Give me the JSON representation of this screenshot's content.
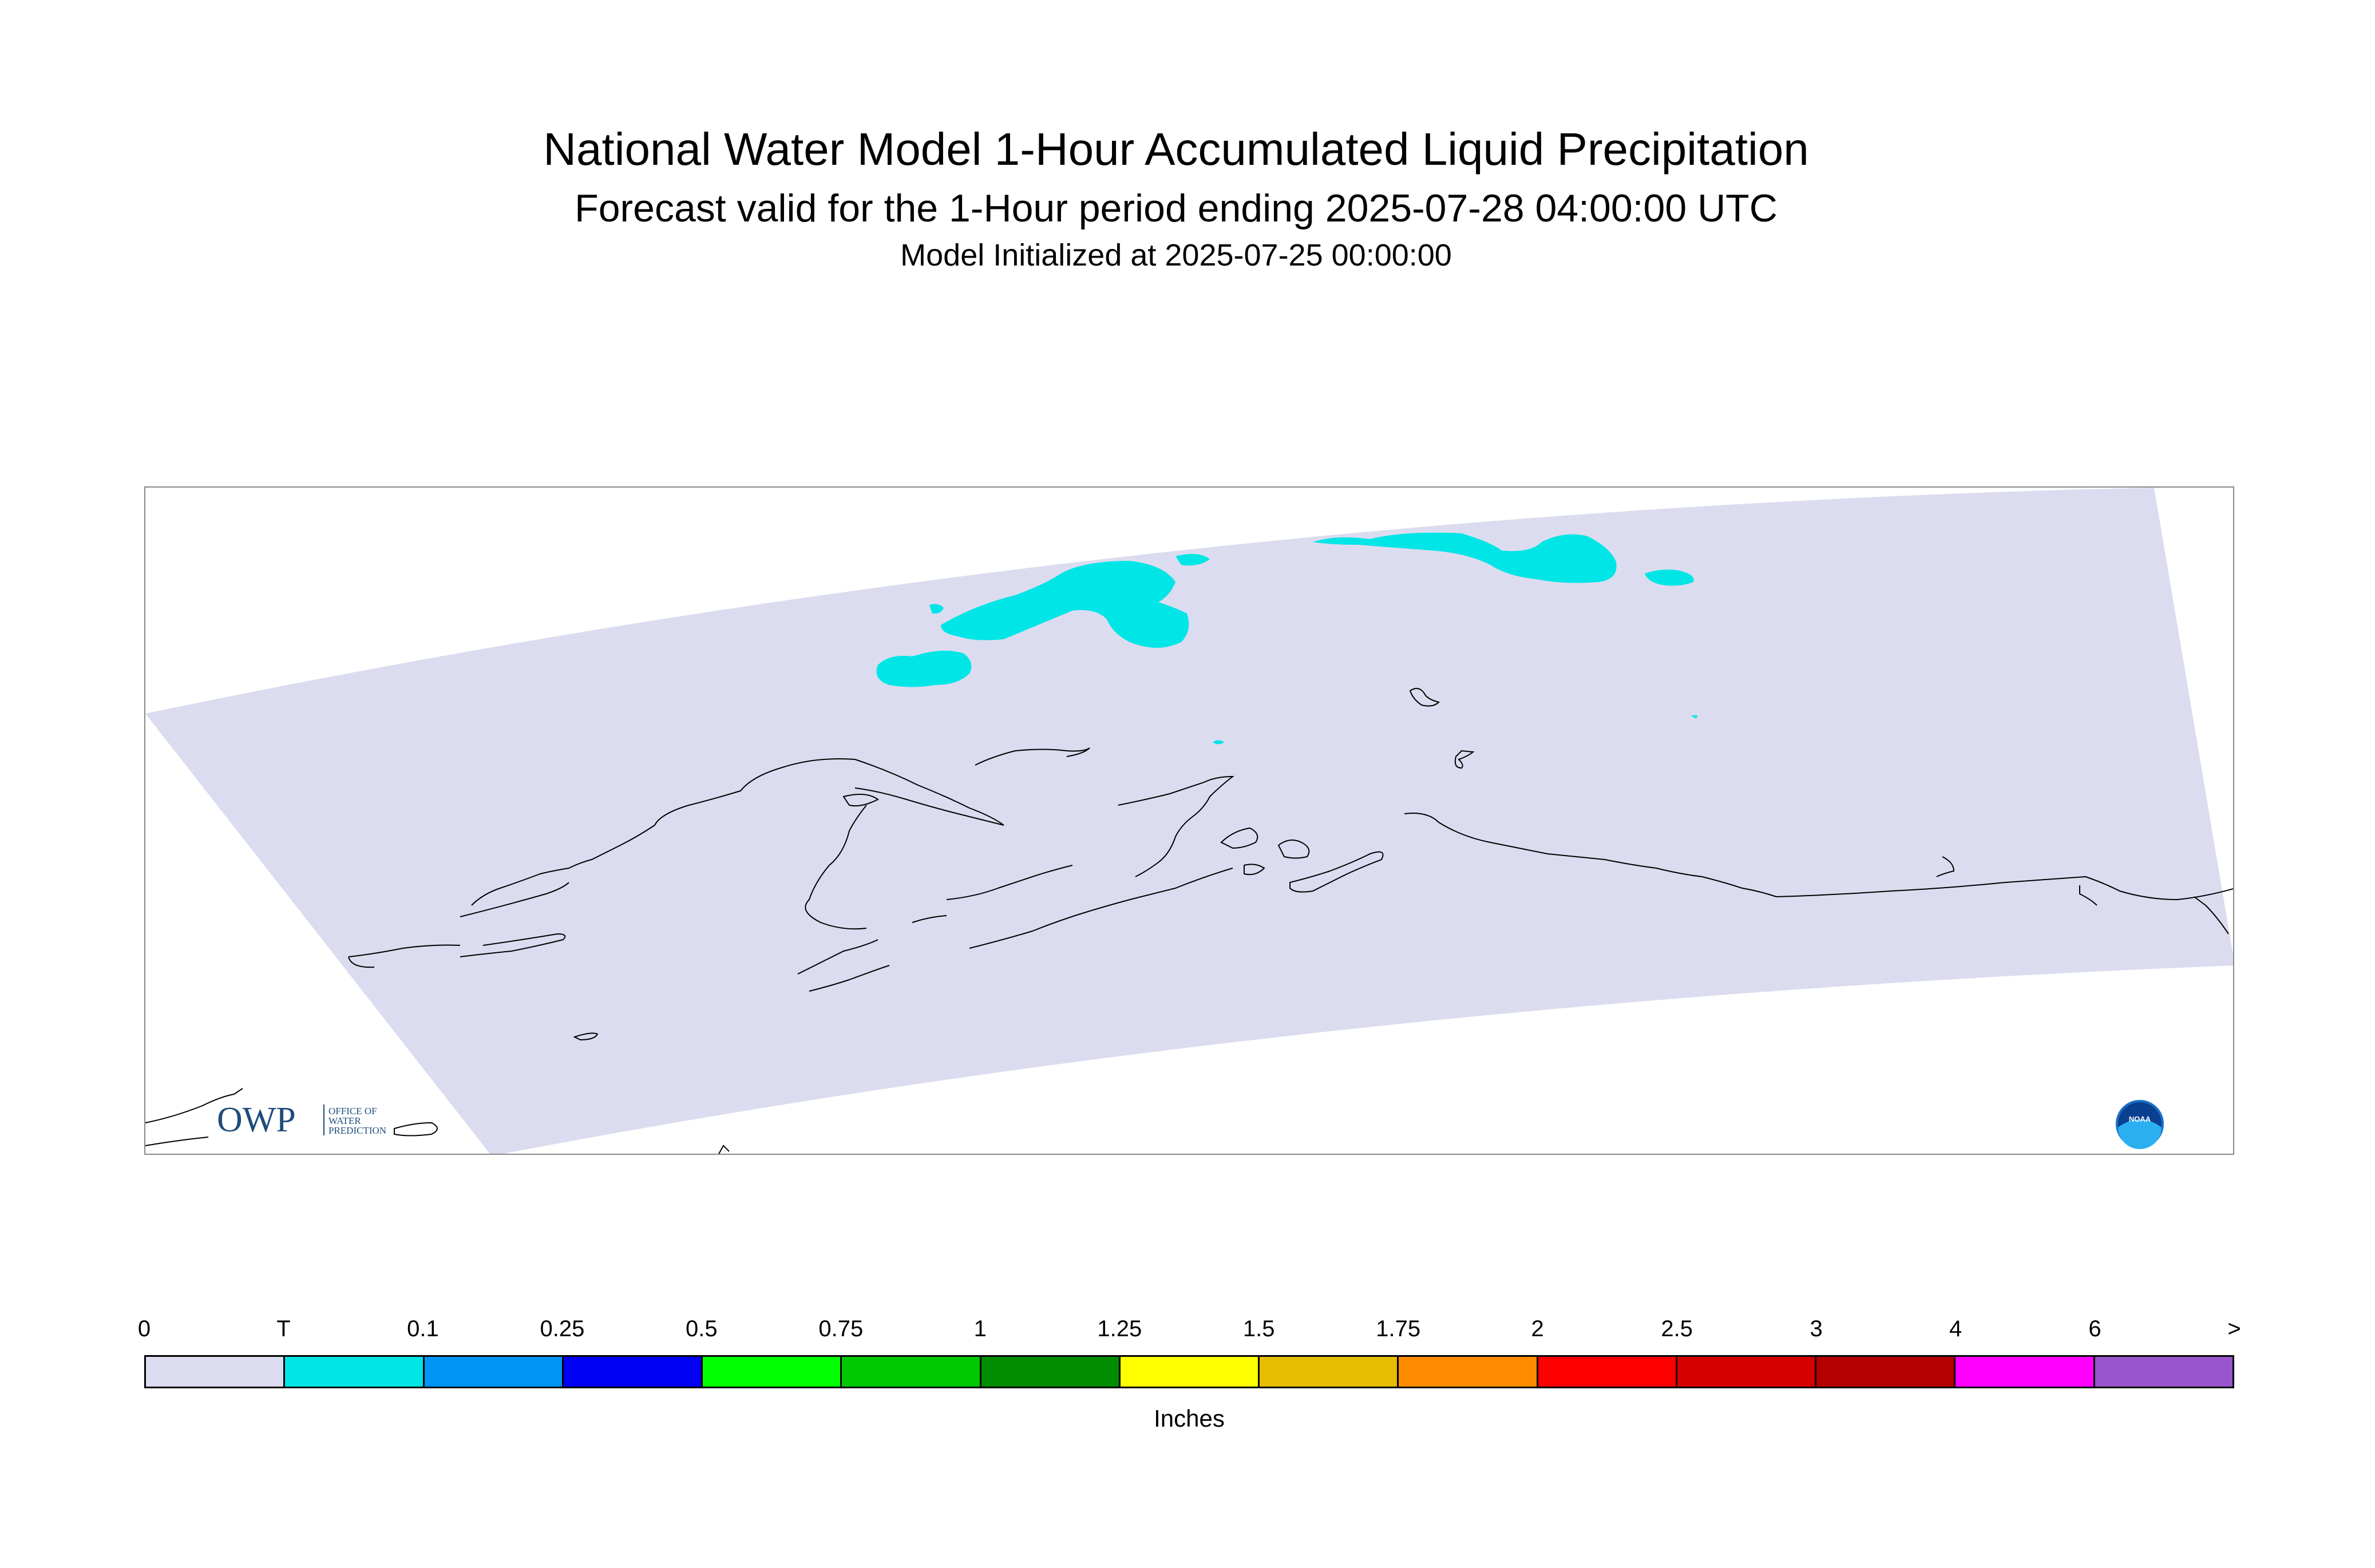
{
  "header": {
    "title": "National Water Model 1-Hour Accumulated Liquid Precipitation",
    "subtitle": "Forecast valid for the 1-Hour period ending 2025-07-28 04:00:00 UTC",
    "initialized": "Model Initialized at 2025-07-25 00:00:00"
  },
  "map": {
    "logo_owp": {
      "mark": "OWP",
      "text_line1": "OFFICE OF",
      "text_line2": "WATER",
      "text_line3": "PREDICTION"
    },
    "logo_noaa": {
      "mark": "NOAA"
    },
    "colors": {
      "domain_fill": "#dcdcf0",
      "precip_trace": "#00e5e5",
      "coastline": "#000000"
    }
  },
  "legend": {
    "units": "Inches",
    "tick_labels": [
      "0",
      "T",
      "0.1",
      "0.25",
      "0.5",
      "0.75",
      "1",
      "1.25",
      "1.5",
      "1.75",
      "2",
      "2.5",
      "3",
      "4",
      "6",
      ">"
    ],
    "colors": [
      "#dcdcf0",
      "#00e5e5",
      "#0095f5",
      "#0000f5",
      "#00ff00",
      "#00c800",
      "#008c00",
      "#ffff00",
      "#e6be00",
      "#ff8c00",
      "#ff0000",
      "#d70000",
      "#b40000",
      "#ff00ff",
      "#9955cc"
    ]
  }
}
